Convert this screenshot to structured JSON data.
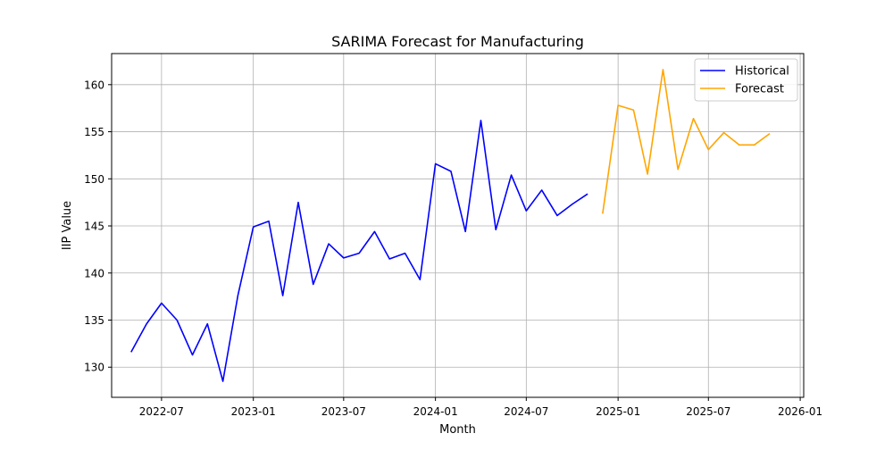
{
  "chart_data": {
    "type": "line",
    "title": "SARIMA Forecast for Manufacturing",
    "xlabel": "Month",
    "ylabel": "IIP Value",
    "x_type": "date",
    "xlim": [
      "2022-03-23",
      "2026-01-08"
    ],
    "ylim": [
      126.8,
      163.3
    ],
    "grid": true,
    "legend_position": "top-right",
    "x_ticks": [
      {
        "value": "2022-07-01",
        "label": "2022-07"
      },
      {
        "value": "2023-01-01",
        "label": "2023-01"
      },
      {
        "value": "2023-07-01",
        "label": "2023-07"
      },
      {
        "value": "2024-01-01",
        "label": "2024-01"
      },
      {
        "value": "2024-07-01",
        "label": "2024-07"
      },
      {
        "value": "2025-01-01",
        "label": "2025-01"
      },
      {
        "value": "2025-07-01",
        "label": "2025-07"
      },
      {
        "value": "2026-01-01",
        "label": "2026-01"
      }
    ],
    "y_ticks": [
      130,
      135,
      140,
      145,
      150,
      155,
      160
    ],
    "series": [
      {
        "name": "Historical",
        "color": "#0000ff",
        "x": [
          "2022-05-01",
          "2022-06-01",
          "2022-07-01",
          "2022-08-01",
          "2022-09-01",
          "2022-10-01",
          "2022-11-01",
          "2022-12-01",
          "2023-01-01",
          "2023-02-01",
          "2023-03-01",
          "2023-04-01",
          "2023-05-01",
          "2023-06-01",
          "2023-07-01",
          "2023-08-01",
          "2023-09-01",
          "2023-10-01",
          "2023-11-01",
          "2023-12-01",
          "2024-01-01",
          "2024-02-01",
          "2024-03-01",
          "2024-04-01",
          "2024-05-01",
          "2024-06-01",
          "2024-07-01",
          "2024-08-01",
          "2024-09-01",
          "2024-10-01",
          "2024-11-01"
        ],
        "y": [
          131.6,
          134.6,
          136.8,
          135.0,
          131.3,
          134.6,
          128.5,
          137.6,
          144.9,
          145.5,
          137.6,
          147.5,
          138.8,
          143.1,
          141.6,
          142.1,
          144.4,
          141.5,
          142.1,
          139.3,
          151.6,
          150.8,
          144.4,
          156.2,
          144.6,
          150.4,
          146.6,
          148.8,
          146.1,
          147.3,
          148.4
        ]
      },
      {
        "name": "Forecast",
        "color": "#ffa500",
        "x": [
          "2024-12-01",
          "2025-01-01",
          "2025-02-01",
          "2025-03-01",
          "2025-04-01",
          "2025-05-01",
          "2025-06-01",
          "2025-07-01",
          "2025-08-01",
          "2025-09-01",
          "2025-10-01",
          "2025-11-01"
        ],
        "y": [
          146.3,
          157.8,
          157.3,
          150.5,
          161.6,
          151.0,
          156.4,
          153.1,
          154.9,
          153.6,
          153.6,
          154.8
        ]
      }
    ]
  }
}
